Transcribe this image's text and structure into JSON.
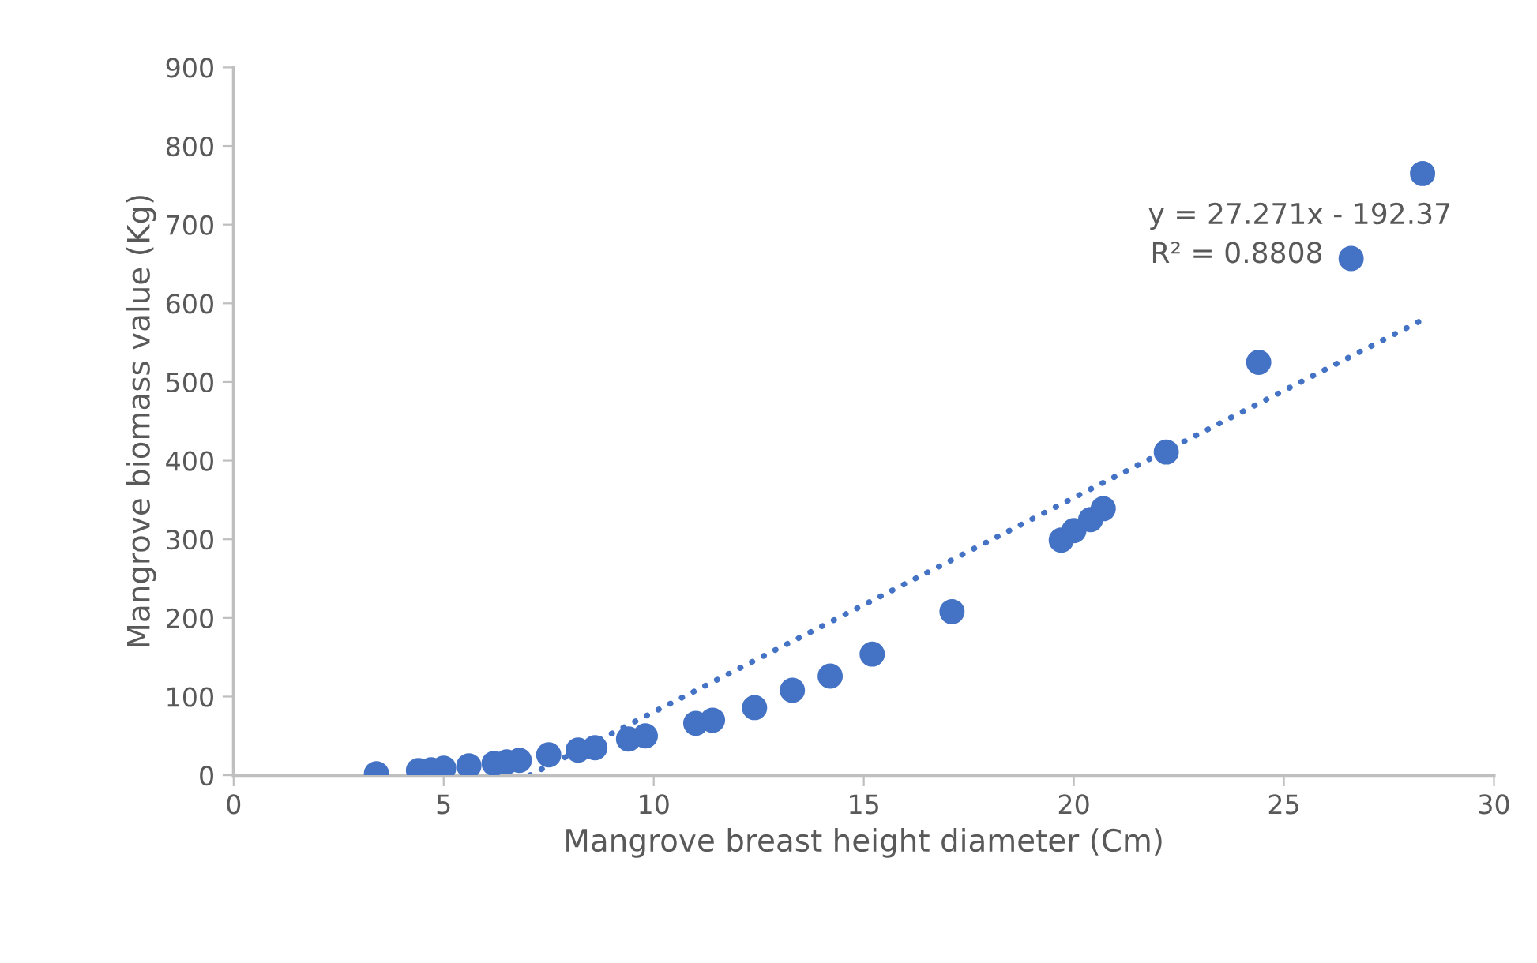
{
  "chart_data": {
    "type": "scatter",
    "xlabel": "Mangrove breast height diameter (Cm)",
    "ylabel": "Mangrove biomass value (Kg)",
    "xlim": [
      0,
      30
    ],
    "xticks": [
      0,
      5,
      10,
      15,
      20,
      25,
      30
    ],
    "ylim": [
      0,
      900
    ],
    "yticks": [
      0,
      100,
      200,
      300,
      400,
      500,
      600,
      700,
      800,
      900
    ],
    "grid": false,
    "legend": false,
    "annotations": [
      "y = 27.271x - 192.37",
      "R² = 0.8808"
    ],
    "series": [
      {
        "marker": "circle",
        "color": "#4472c4",
        "x": [
          3.4,
          4.4,
          4.7,
          5.0,
          5.6,
          6.2,
          6.5,
          6.8,
          7.5,
          8.2,
          8.6,
          9.4,
          9.8,
          11.0,
          11.4,
          12.4,
          13.3,
          14.2,
          15.2,
          17.1,
          19.7,
          20.0,
          20.4,
          20.7,
          22.2,
          24.4,
          26.6,
          28.3
        ],
        "values": [
          2,
          6,
          7,
          9,
          12,
          15,
          17,
          19,
          26,
          32,
          35,
          46,
          50,
          66,
          70,
          86,
          108,
          126,
          154,
          208,
          299,
          311,
          325,
          339,
          411,
          525,
          657,
          765
        ]
      },
      {
        "type": "line",
        "color": "#4472c4",
        "line_style": "dotted",
        "marker": "none",
        "x": [
          7.05,
          28.3
        ],
        "values": [
          0,
          579
        ]
      }
    ]
  }
}
